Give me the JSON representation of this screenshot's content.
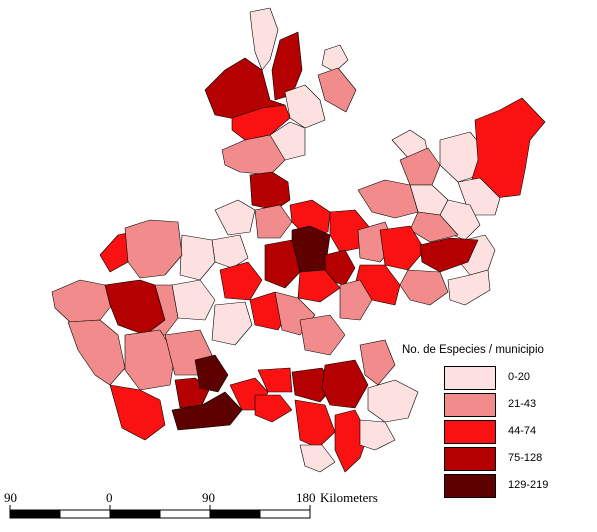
{
  "legend": {
    "title": "No. de Especies / municipio",
    "classes": [
      {
        "label": "0-20",
        "color": "#fde0e0"
      },
      {
        "label": "21-43",
        "color": "#f28c8c"
      },
      {
        "label": "44-74",
        "color": "#fa1212"
      },
      {
        "label": "75-128",
        "color": "#b40000"
      },
      {
        "label": "129-219",
        "color": "#5c0000"
      }
    ]
  },
  "scale_bar": {
    "ticks": [
      "90",
      "0",
      "90",
      "180"
    ],
    "unit": "Kilometers"
  },
  "colors": {
    "border": "#000000",
    "background": "#ffffff"
  }
}
